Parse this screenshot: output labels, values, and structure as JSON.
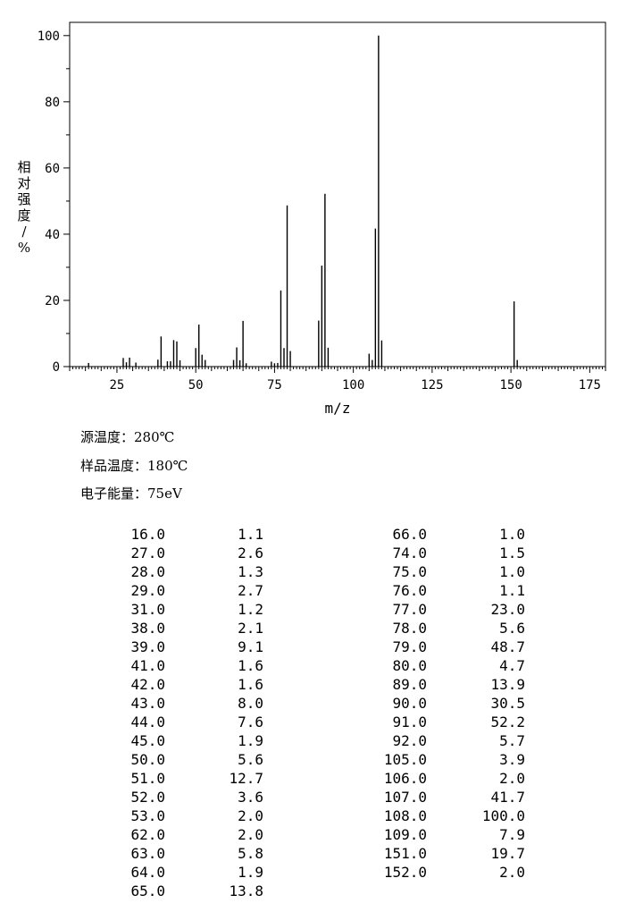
{
  "chart_data": {
    "type": "bar",
    "xlabel": "m/z",
    "ylabel": "相对强度/%",
    "xlim": [
      10,
      180
    ],
    "ylim": [
      0,
      104
    ],
    "xticks": [
      25,
      50,
      75,
      100,
      125,
      150,
      175
    ],
    "yticks": [
      0,
      20,
      40,
      60,
      80,
      100
    ],
    "x": [
      16,
      27,
      28,
      29,
      31,
      38,
      39,
      41,
      42,
      43,
      44,
      45,
      50,
      51,
      52,
      53,
      62,
      63,
      64,
      65,
      66,
      74,
      75,
      76,
      77,
      78,
      79,
      80,
      89,
      90,
      91,
      92,
      105,
      106,
      107,
      108,
      109,
      151,
      152
    ],
    "values": [
      1.1,
      2.6,
      1.3,
      2.7,
      1.2,
      2.1,
      9.1,
      1.6,
      1.6,
      8.0,
      7.6,
      1.9,
      5.6,
      12.7,
      3.6,
      2.0,
      2.0,
      5.8,
      1.9,
      13.8,
      1.0,
      1.5,
      1.0,
      1.1,
      23.0,
      5.6,
      48.7,
      4.7,
      13.9,
      30.5,
      52.2,
      5.7,
      3.9,
      2.0,
      41.7,
      100.0,
      7.9,
      19.7,
      2.0
    ]
  },
  "info": {
    "source_temp": "源温度：280℃",
    "sample_temp": "样品温度：180℃",
    "electron_energy": "电子能量：75eV"
  },
  "table_left": [
    [
      "16.0",
      "1.1"
    ],
    [
      "27.0",
      "2.6"
    ],
    [
      "28.0",
      "1.3"
    ],
    [
      "29.0",
      "2.7"
    ],
    [
      "31.0",
      "1.2"
    ],
    [
      "38.0",
      "2.1"
    ],
    [
      "39.0",
      "9.1"
    ],
    [
      "41.0",
      "1.6"
    ],
    [
      "42.0",
      "1.6"
    ],
    [
      "43.0",
      "8.0"
    ],
    [
      "44.0",
      "7.6"
    ],
    [
      "45.0",
      "1.9"
    ],
    [
      "50.0",
      "5.6"
    ],
    [
      "51.0",
      "12.7"
    ],
    [
      "52.0",
      "3.6"
    ],
    [
      "53.0",
      "2.0"
    ],
    [
      "62.0",
      "2.0"
    ],
    [
      "63.0",
      "5.8"
    ],
    [
      "64.0",
      "1.9"
    ],
    [
      "65.0",
      "13.8"
    ]
  ],
  "table_right": [
    [
      "66.0",
      "1.0"
    ],
    [
      "74.0",
      "1.5"
    ],
    [
      "75.0",
      "1.0"
    ],
    [
      "76.0",
      "1.1"
    ],
    [
      "77.0",
      "23.0"
    ],
    [
      "78.0",
      "5.6"
    ],
    [
      "79.0",
      "48.7"
    ],
    [
      "80.0",
      "4.7"
    ],
    [
      "89.0",
      "13.9"
    ],
    [
      "90.0",
      "30.5"
    ],
    [
      "91.0",
      "52.2"
    ],
    [
      "92.0",
      "5.7"
    ],
    [
      "105.0",
      "3.9"
    ],
    [
      "106.0",
      "2.0"
    ],
    [
      "107.0",
      "41.7"
    ],
    [
      "108.0",
      "100.0"
    ],
    [
      "109.0",
      "7.9"
    ],
    [
      "151.0",
      "19.7"
    ],
    [
      "152.0",
      "2.0"
    ]
  ]
}
